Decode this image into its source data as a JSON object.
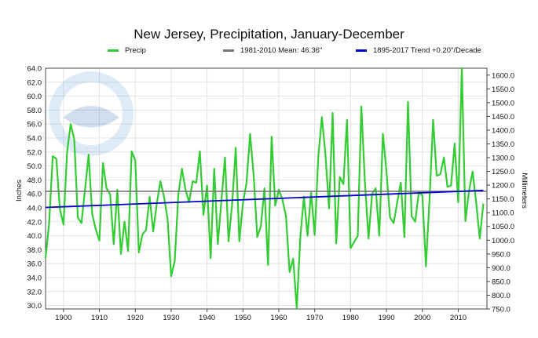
{
  "chart_data": {
    "type": "line",
    "title": "New Jersey, Precipitation, January-December",
    "ylabel": "Inches",
    "ylabel_right": "Millimeters",
    "xlim": [
      1895,
      2018
    ],
    "ylim": [
      29.5,
      64.0
    ],
    "ylim_right": [
      750,
      1625
    ],
    "x_ticks": [
      1900,
      1910,
      1920,
      1930,
      1940,
      1950,
      1960,
      1970,
      1980,
      1990,
      2000,
      2010
    ],
    "x_tick_labels": [
      "1900",
      "1910",
      "1920",
      "1930",
      "1940",
      "1950",
      "1960",
      "1970",
      "1980",
      "1990",
      "2000",
      "2010"
    ],
    "y_ticks": [
      30,
      32,
      34,
      36,
      38,
      40,
      42,
      44,
      46,
      48,
      50,
      52,
      54,
      56,
      58,
      60,
      62,
      64
    ],
    "y_tick_labels": [
      "30.0",
      "32.0",
      "34.0",
      "36.0",
      "38.0",
      "40.0",
      "42.0",
      "44.0",
      "46.0",
      "48.0",
      "50.0",
      "52.0",
      "54.0",
      "56.0",
      "58.0",
      "60.0",
      "62.0",
      "64.0"
    ],
    "y_right_ticks": [
      750,
      800,
      850,
      900,
      950,
      1000,
      1050,
      1100,
      1150,
      1200,
      1250,
      1300,
      1350,
      1400,
      1450,
      1500,
      1550,
      1600
    ],
    "y_right_tick_labels": [
      "750.0",
      "800.0",
      "850.0",
      "900.0",
      "950.0",
      "1000.0",
      "1050.0",
      "1100.0",
      "1150.0",
      "1200.0",
      "1250.0",
      "1300.0",
      "1350.0",
      "1400.0",
      "1450.0",
      "1500.0",
      "1550.0",
      "1600.0"
    ],
    "grid": true,
    "legend_placement": "top",
    "series": [
      {
        "name": "Precip",
        "color": "#33cc33",
        "x": [
          1895,
          1896,
          1897,
          1898,
          1899,
          1900,
          1901,
          1902,
          1903,
          1904,
          1905,
          1906,
          1907,
          1908,
          1909,
          1910,
          1911,
          1912,
          1913,
          1914,
          1915,
          1916,
          1917,
          1918,
          1919,
          1920,
          1921,
          1922,
          1923,
          1924,
          1925,
          1926,
          1927,
          1928,
          1929,
          1930,
          1931,
          1932,
          1933,
          1934,
          1935,
          1936,
          1937,
          1938,
          1939,
          1940,
          1941,
          1942,
          1943,
          1944,
          1945,
          1946,
          1947,
          1948,
          1949,
          1950,
          1951,
          1952,
          1953,
          1954,
          1955,
          1956,
          1957,
          1958,
          1959,
          1960,
          1961,
          1962,
          1963,
          1964,
          1965,
          1966,
          1967,
          1968,
          1969,
          1970,
          1971,
          1972,
          1973,
          1974,
          1975,
          1976,
          1977,
          1978,
          1979,
          1980,
          1981,
          1982,
          1983,
          1984,
          1985,
          1986,
          1987,
          1988,
          1989,
          1990,
          1991,
          1992,
          1993,
          1994,
          1995,
          1996,
          1997,
          1998,
          1999,
          2000,
          2001,
          2002,
          2003,
          2004,
          2005,
          2006,
          2007,
          2008,
          2009,
          2010,
          2011,
          2012,
          2013,
          2014,
          2015,
          2016,
          2017
        ],
        "values": [
          36.8,
          41.8,
          51.4,
          51.0,
          43.8,
          41.6,
          52.0,
          56.0,
          53.8,
          42.6,
          41.8,
          46.6,
          51.6,
          43.1,
          40.9,
          39.3,
          50.4,
          46.8,
          45.9,
          38.8,
          46.6,
          37.4,
          42.0,
          37.8,
          52.1,
          50.8,
          37.6,
          40.2,
          40.8,
          45.6,
          40.6,
          44.6,
          47.8,
          45.6,
          42.4,
          34.2,
          36.4,
          45.8,
          49.6,
          46.6,
          44.8,
          47.8,
          47.6,
          52.1,
          43.0,
          47.2,
          36.8,
          49.6,
          38.8,
          45.0,
          51.2,
          39.2,
          44.6,
          52.6,
          39.2,
          44.6,
          47.6,
          54.6,
          48.6,
          39.8,
          41.4,
          46.8,
          35.8,
          54.2,
          44.3,
          46.6,
          45.2,
          42.8,
          34.8,
          36.7,
          29.6,
          39.8,
          45.6,
          40.0,
          46.2,
          40.1,
          51.3,
          57.0,
          51.6,
          43.9,
          57.6,
          38.9,
          48.4,
          47.4,
          56.6,
          38.2,
          39.1,
          40.0,
          58.5,
          47.6,
          39.6,
          46.0,
          46.8,
          40.0,
          54.6,
          49.2,
          42.6,
          41.8,
          44.8,
          47.6,
          39.8,
          59.2,
          42.8,
          42.0,
          46.2,
          45.8,
          35.6,
          45.2,
          56.6,
          48.6,
          48.8,
          51.2,
          47.0,
          47.2,
          53.2,
          44.8,
          64.0,
          42.1,
          46.4,
          49.2,
          44.8,
          39.6,
          44.6
        ]
      },
      {
        "name": "1981-2010 Mean: 46.36\"",
        "color": "#777777",
        "type": "hline",
        "value": 46.36
      },
      {
        "name": "1895-2017 Trend +0.20\"/Decade",
        "color": "#0000cc",
        "type": "trend",
        "x": [
          1895,
          2017
        ],
        "values": [
          44.05,
          46.49
        ]
      }
    ]
  }
}
